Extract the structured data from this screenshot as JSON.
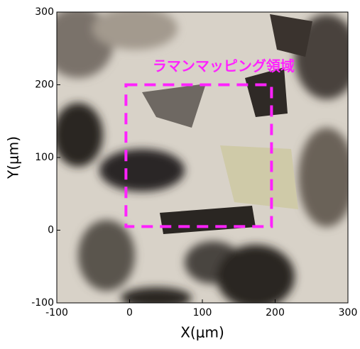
{
  "chart_data": {
    "type": "image",
    "xlabel": "X(μm)",
    "ylabel": "Y(μm)",
    "xlim": [
      -100,
      300
    ],
    "ylim": [
      -100,
      300
    ],
    "xticks": [
      -100,
      0,
      100,
      200,
      300
    ],
    "yticks": [
      -100,
      0,
      100,
      200,
      300
    ],
    "region": {
      "label": "ラマンマッピング領域",
      "x": [
        -5,
        195
      ],
      "y": [
        5,
        200
      ],
      "color": "#ff22ff"
    }
  }
}
